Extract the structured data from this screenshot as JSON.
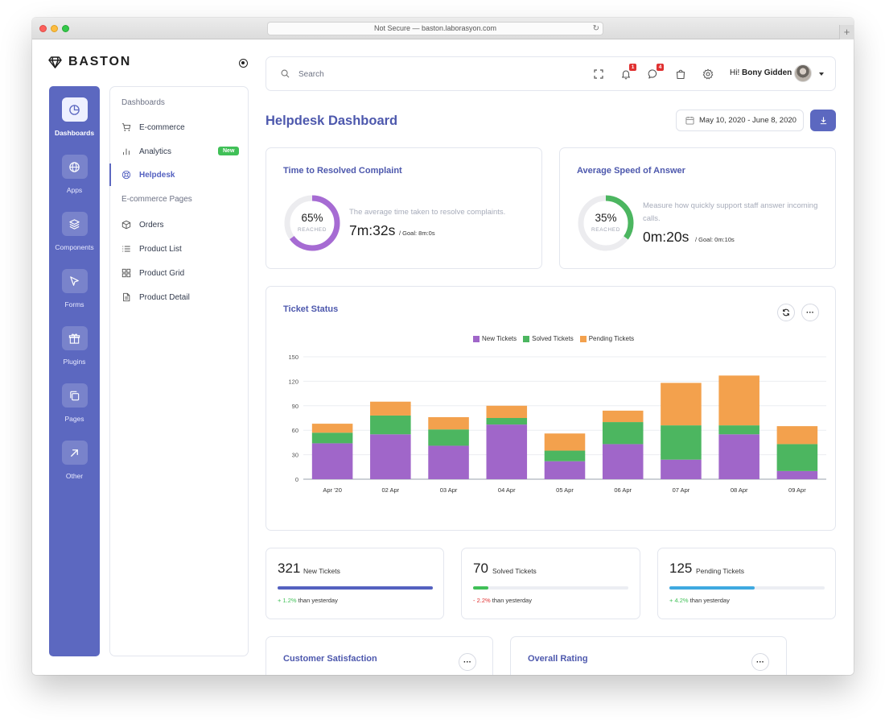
{
  "browser": {
    "url": "Not Secure — baston.laborasyon.com"
  },
  "brand": {
    "name": "BASTON"
  },
  "rail": {
    "items": [
      {
        "label": "Dashboards",
        "icon": "pie-chart-icon",
        "active": true
      },
      {
        "label": "Apps",
        "icon": "globe-icon",
        "active": false
      },
      {
        "label": "Components",
        "icon": "layers-icon",
        "active": false
      },
      {
        "label": "Forms",
        "icon": "cursor-icon",
        "active": false
      },
      {
        "label": "Plugins",
        "icon": "gift-icon",
        "active": false
      },
      {
        "label": "Pages",
        "icon": "copy-icon",
        "active": false
      },
      {
        "label": "Other",
        "icon": "arrow-up-right-icon",
        "active": false
      }
    ]
  },
  "subnav": {
    "heading_dashboards": "Dashboards",
    "heading_ecommerce": "E-commerce Pages",
    "items": [
      {
        "label": "E-commerce",
        "icon": "cart-icon"
      },
      {
        "label": "Analytics",
        "icon": "bar-chart-icon",
        "badge": "New"
      },
      {
        "label": "Helpdesk",
        "icon": "lifebuoy-icon",
        "active": true
      },
      {
        "label": "Orders",
        "icon": "box-icon"
      },
      {
        "label": "Product List",
        "icon": "list-icon"
      },
      {
        "label": "Product Grid",
        "icon": "grid-icon"
      },
      {
        "label": "Product Detail",
        "icon": "file-icon"
      }
    ]
  },
  "topbar": {
    "search_placeholder": "Search",
    "notifications_count": "1",
    "messages_count": "4",
    "greeting_prefix": "Hi!",
    "user_name": "Bony Gidden"
  },
  "page": {
    "title": "Helpdesk Dashboard",
    "date_range": "May 10, 2020 - June 8, 2020"
  },
  "kpis": [
    {
      "title": "Time to Resolved Complaint",
      "percent": "65%",
      "percent_value": 0.65,
      "reached": "REACHED",
      "description": "The average time taken to resolve complaints.",
      "value": "7m:32s",
      "goal": "/ Goal: 8m:0s",
      "color": "#a66bd3"
    },
    {
      "title": "Average Speed of Answer",
      "percent": "35%",
      "percent_value": 0.35,
      "reached": "REACHED",
      "description": "Measure how quickly support staff answer incoming calls.",
      "value": "0m:20s",
      "goal": "/ Goal: 0m:10s",
      "color": "#4cb660"
    }
  ],
  "ticket_status": {
    "title": "Ticket Status"
  },
  "chart_data": {
    "type": "bar",
    "stacked": true,
    "title": "Ticket Status",
    "categories": [
      "Apr '20",
      "02 Apr",
      "03 Apr",
      "04 Apr",
      "05 Apr",
      "06 Apr",
      "07 Apr",
      "08 Apr",
      "09 Apr"
    ],
    "series": [
      {
        "name": "New Tickets",
        "color": "#a066c9",
        "values": [
          44,
          55,
          41,
          67,
          22,
          43,
          24,
          55,
          10
        ]
      },
      {
        "name": "Solved Tickets",
        "color": "#4cb660",
        "values": [
          13,
          23,
          20,
          8,
          13,
          27,
          42,
          11,
          33
        ]
      },
      {
        "name": "Pending Tickets",
        "color": "#f3a14d",
        "values": [
          11,
          17,
          15,
          15,
          21,
          14,
          52,
          61,
          22
        ]
      }
    ],
    "yticks": [
      0,
      30,
      60,
      90,
      120,
      150
    ],
    "ylim": [
      0,
      150
    ],
    "legend_position": "top-center",
    "grid": true
  },
  "stats": [
    {
      "number": "321",
      "label": "New Tickets",
      "change": "+ 1.2%",
      "change_suffix": "than yesterday",
      "progress": 1.0,
      "color": "#5461c0",
      "change_color": "#40c057"
    },
    {
      "number": "70",
      "label": "Solved Tickets",
      "change": "- 2.2%",
      "change_suffix": "than yesterday",
      "progress": 0.1,
      "color": "#40c057",
      "change_color": "#e03131"
    },
    {
      "number": "125",
      "label": "Pending Tickets",
      "change": "+ 4.2%",
      "change_suffix": "than yesterday",
      "progress": 0.55,
      "color": "#3fa9e0",
      "change_color": "#40c057"
    }
  ],
  "bottom_cards": {
    "satisfaction_title": "Customer Satisfaction",
    "rating_title": "Overall Rating",
    "more_glyph": "···"
  }
}
